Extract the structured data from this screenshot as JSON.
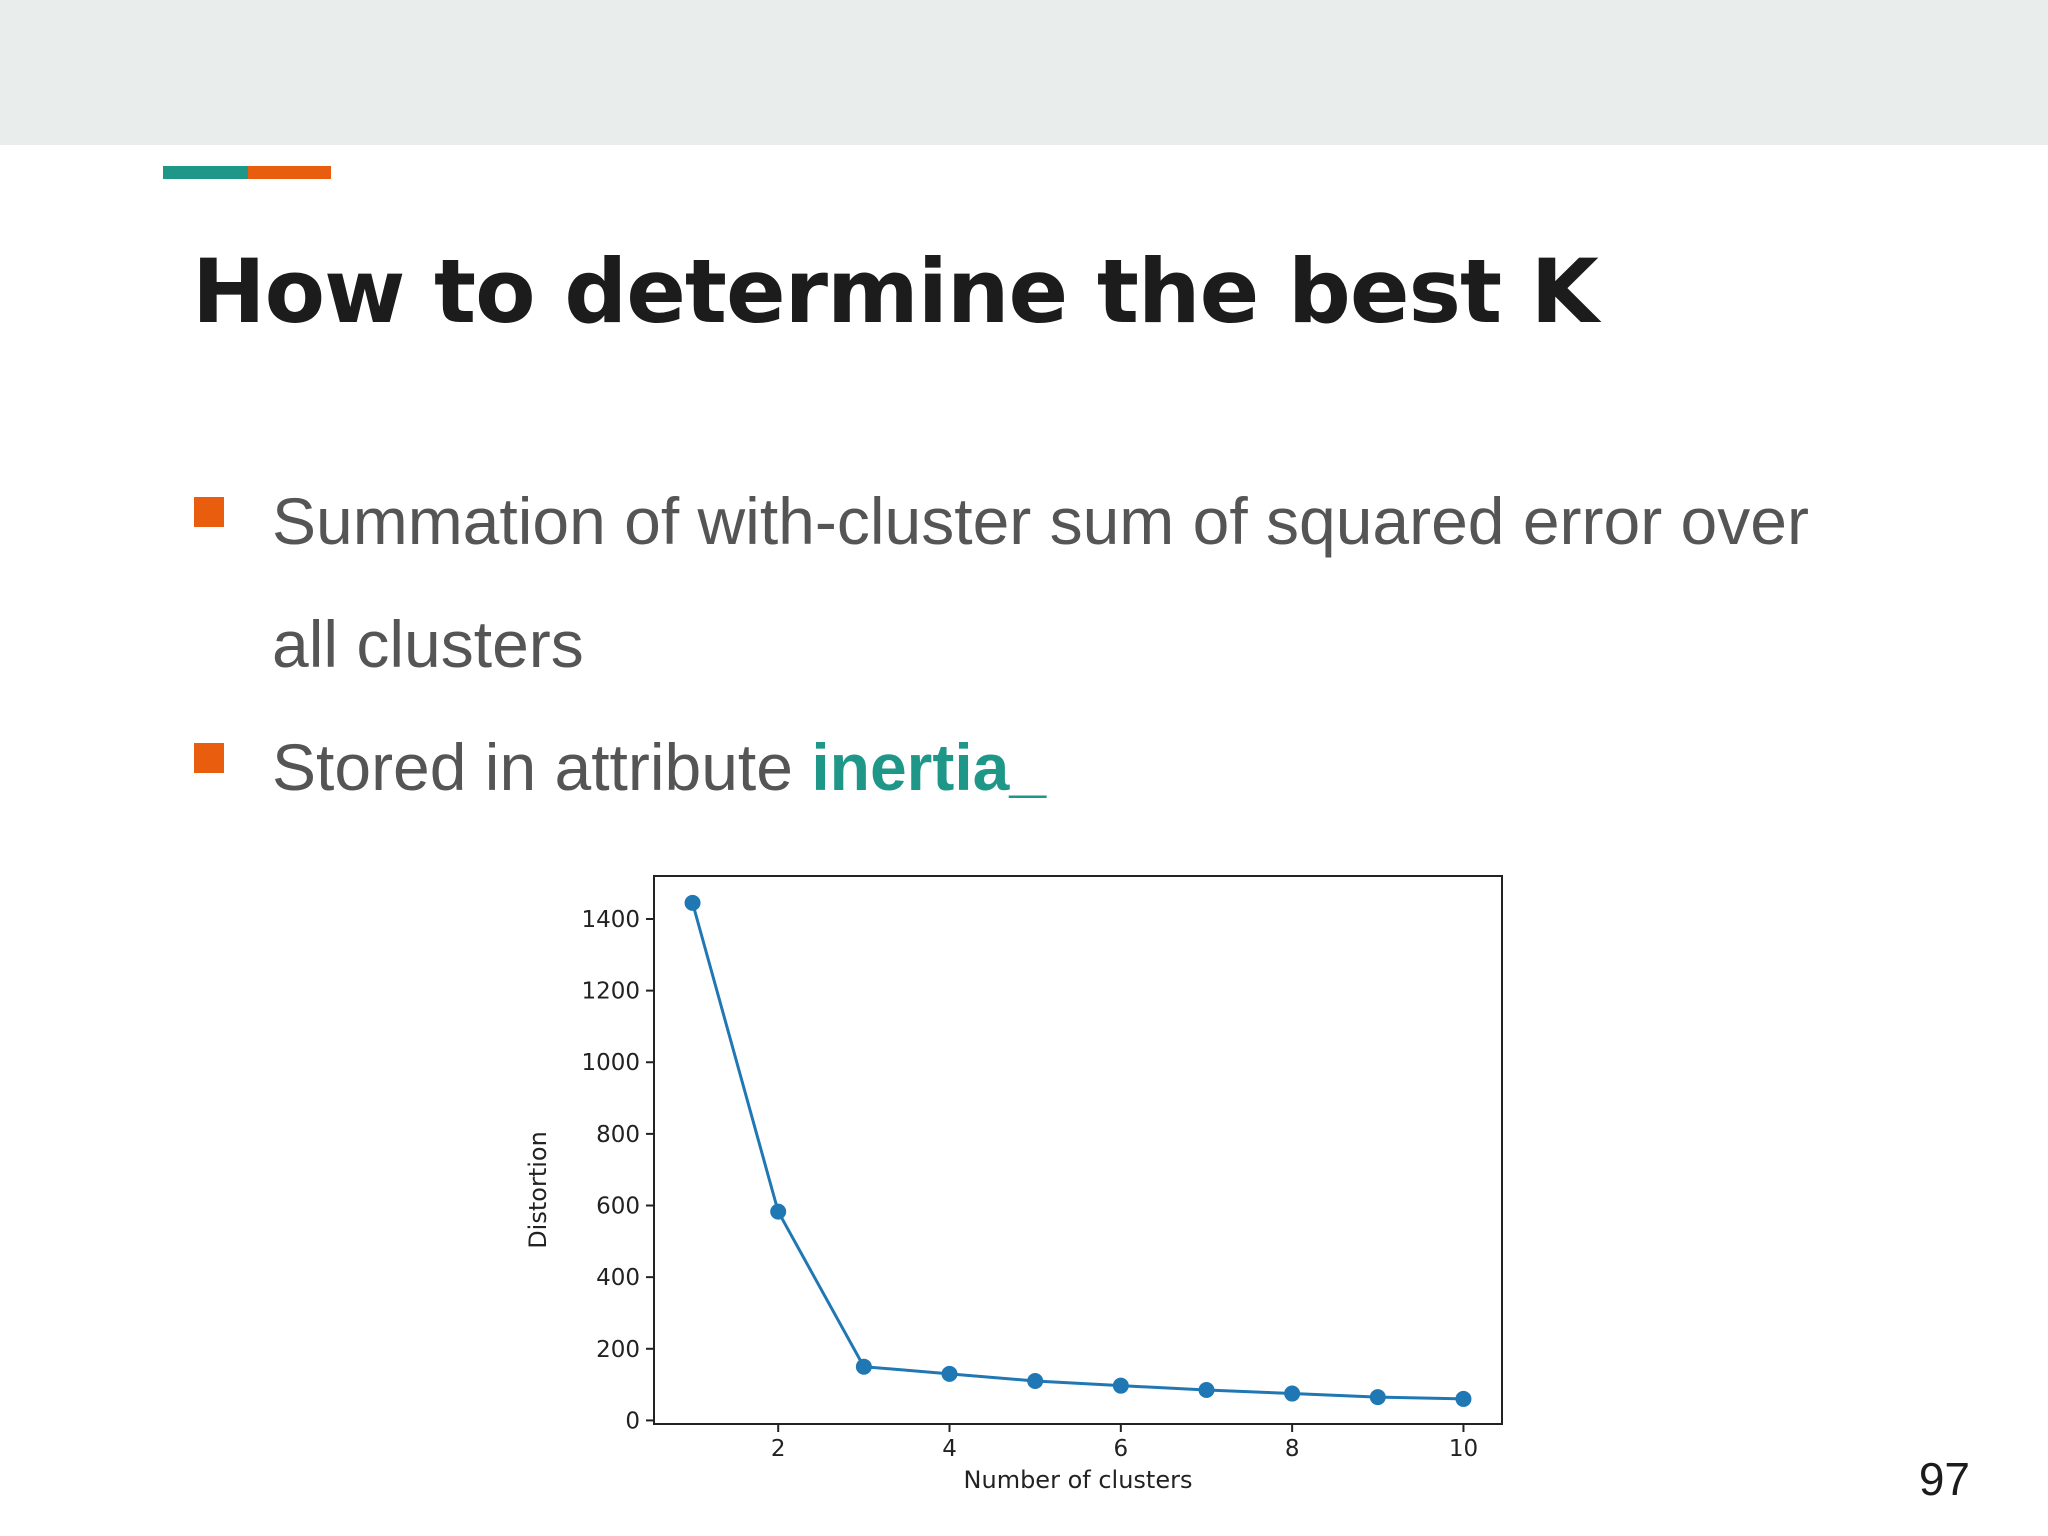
{
  "slide": {
    "title": "How to determine the best K",
    "bullets": [
      {
        "text": "Summation of with-cluster sum of squared error over all clusters"
      },
      {
        "text": "Stored in attribute ",
        "highlight": "inertia_"
      }
    ],
    "page_number": "97",
    "colors": {
      "accent_teal": "#1e9788",
      "accent_orange": "#e95d0f",
      "band": "#e9edec",
      "series": "#1f77b4"
    }
  },
  "chart_data": {
    "type": "line",
    "xlabel": "Number of clusters",
    "ylabel": "Distortion",
    "x": [
      1,
      2,
      3,
      4,
      5,
      6,
      7,
      8,
      9,
      10
    ],
    "series": [
      {
        "values": [
          1445,
          583,
          150,
          130,
          110,
          97,
          85,
          75,
          65,
          60
        ],
        "color": "#1f77b4",
        "marker": "circle"
      }
    ],
    "xlim": [
      0.55,
      10.45
    ],
    "ylim": [
      -10,
      1520
    ],
    "xticks": [
      2,
      4,
      6,
      8,
      10
    ],
    "yticks": [
      0,
      200,
      400,
      600,
      800,
      1000,
      1200,
      1400
    ],
    "grid": false
  }
}
